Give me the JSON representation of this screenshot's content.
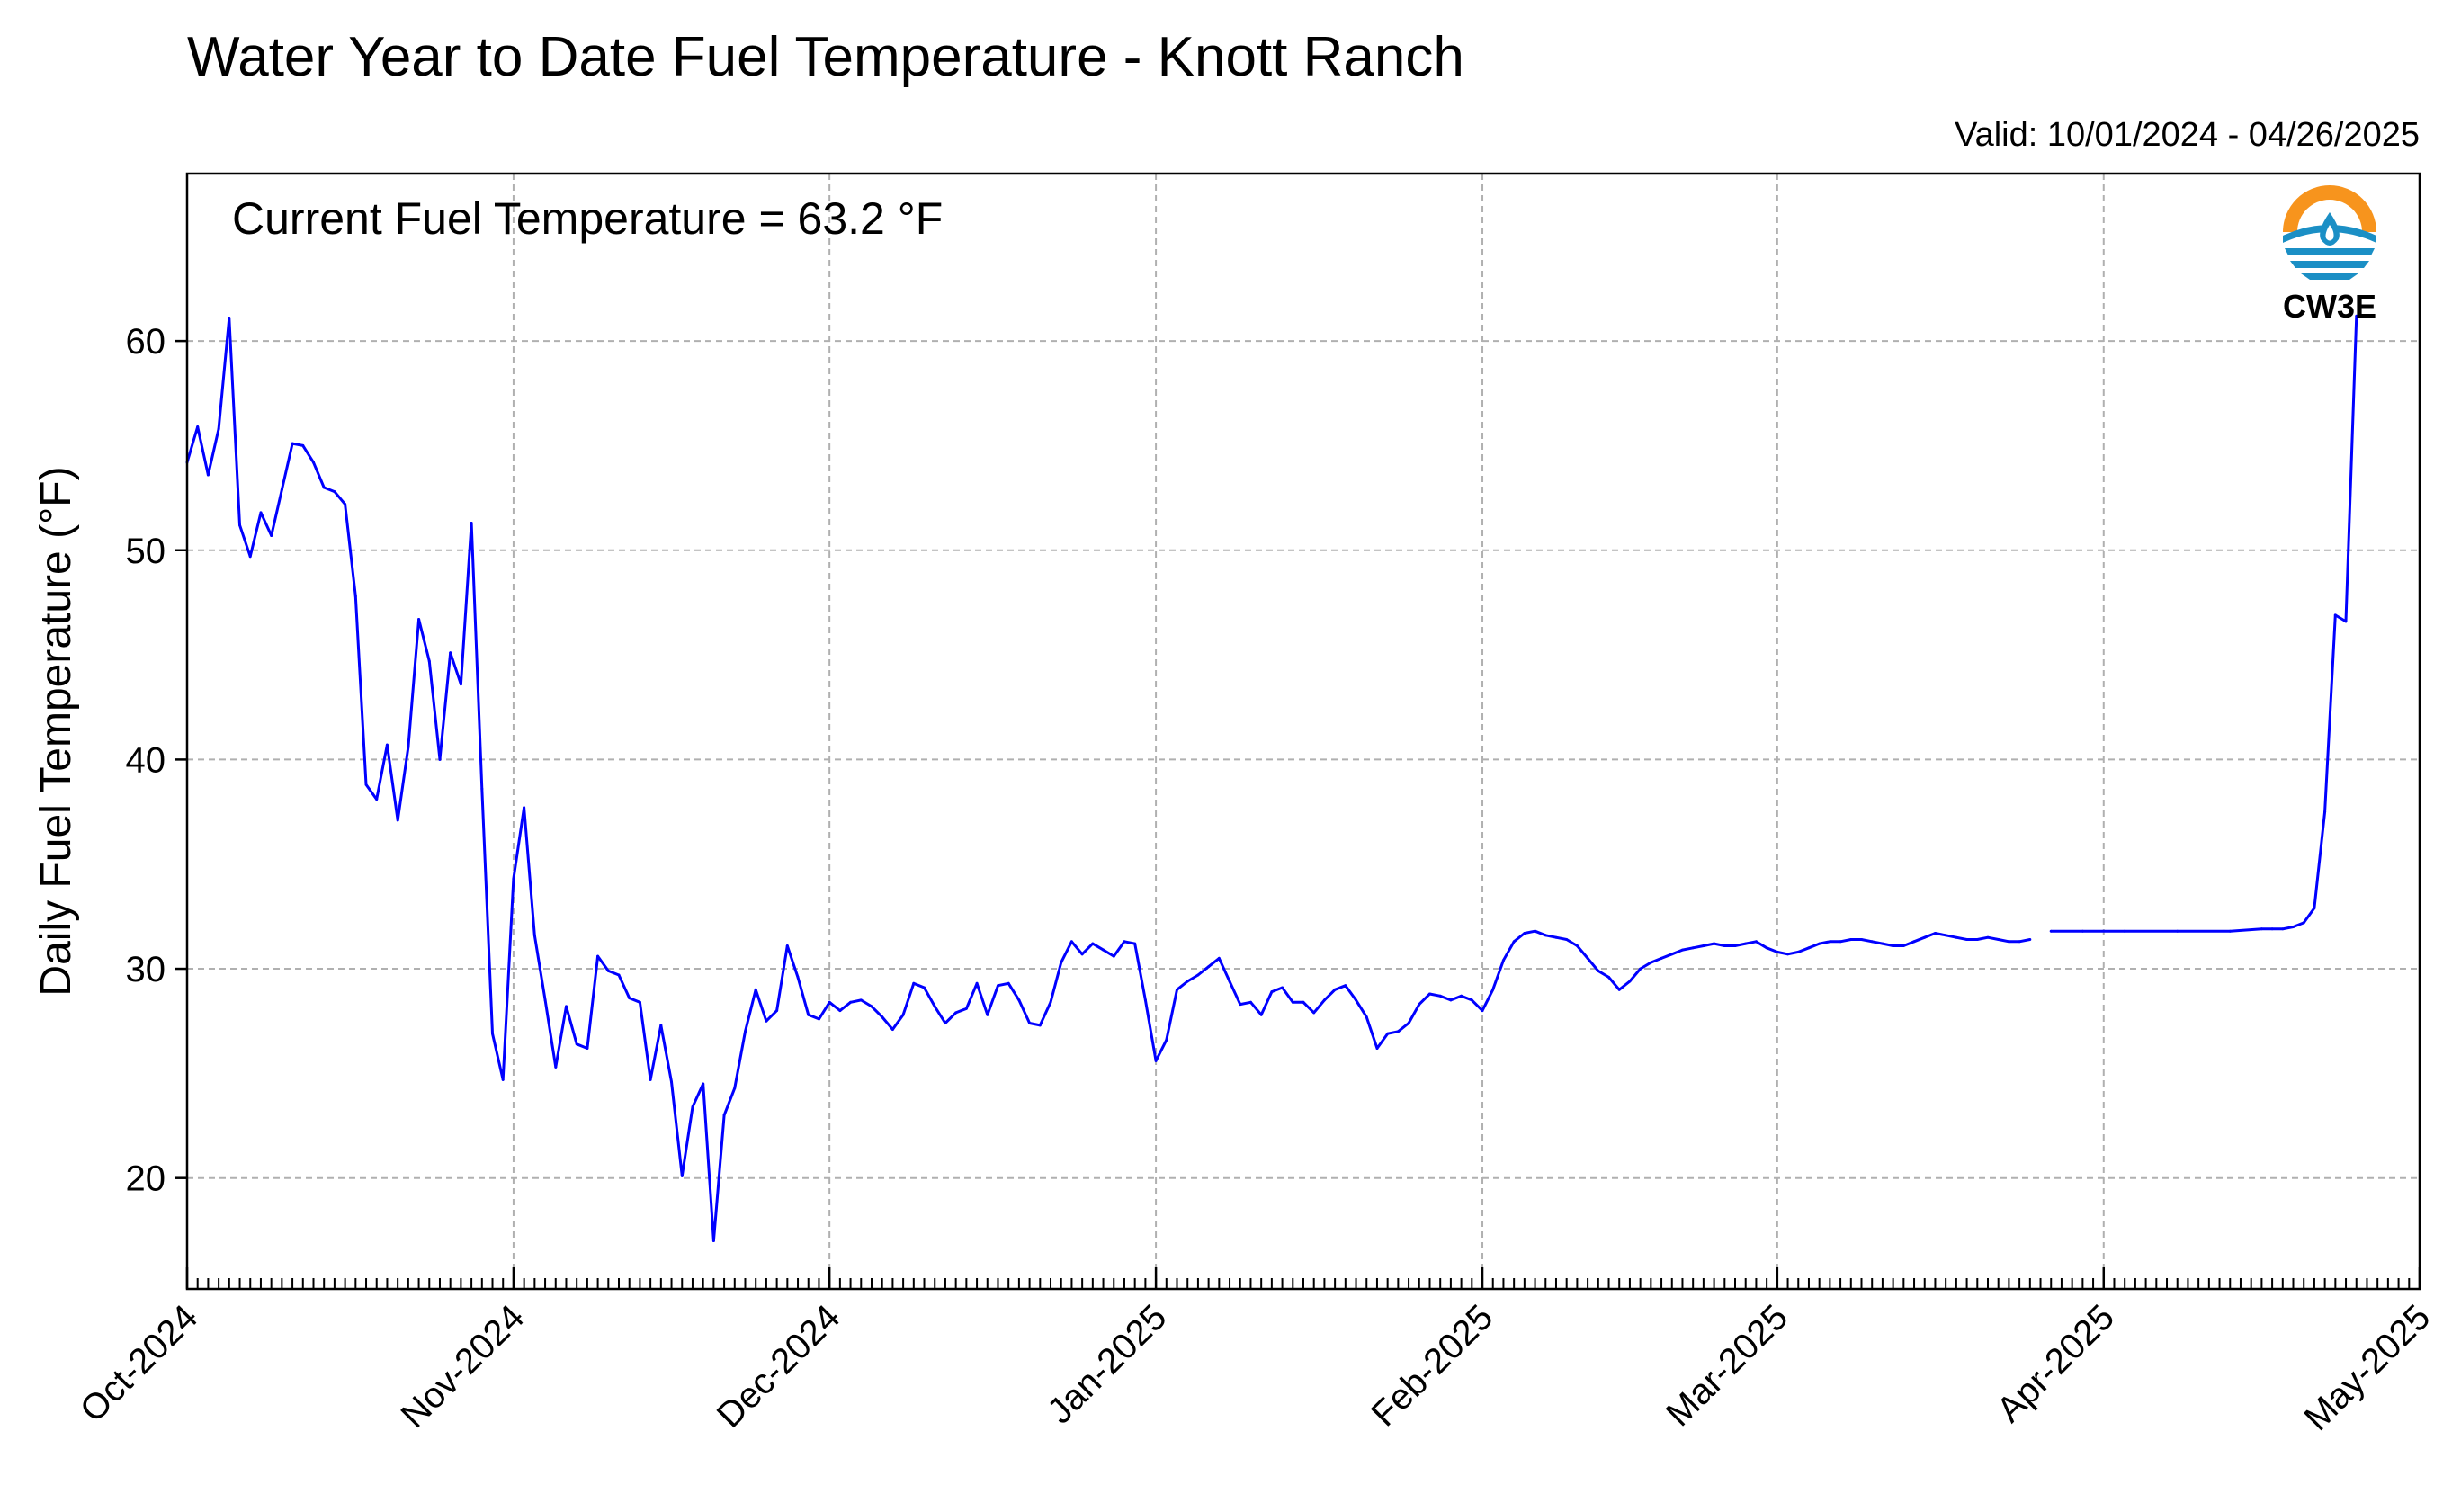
{
  "title": "Water Year to Date Fuel Temperature - Knott Ranch",
  "valid_text": "Valid: 10/01/2024 - 04/26/2025",
  "annotation": "Current Fuel Temperature = 63.2 °F",
  "logo": {
    "text": "CW3E",
    "icon": "cw3e-logo-icon",
    "colors": {
      "sun": "#f7941d",
      "water": "#1b8fc5"
    }
  },
  "colors": {
    "line": "#0000ff",
    "grid": "#b0b0b0",
    "axis": "#000000"
  },
  "chart_data": {
    "type": "line",
    "title": "Water Year to Date Fuel Temperature - Knott Ranch",
    "xlabel": "",
    "ylabel": "Daily Fuel Temperature (°F)",
    "xlim": [
      "2024-10-01",
      "2025-05-01"
    ],
    "ylim": [
      14.7,
      68
    ],
    "grid": true,
    "x_tick_labels": [
      "Oct-2024",
      "Nov-2024",
      "Dec-2024",
      "Jan-2025",
      "Feb-2025",
      "Mar-2025",
      "Apr-2025",
      "May-2025"
    ],
    "x_tick_dates": [
      "2024-10-01",
      "2024-11-01",
      "2024-12-01",
      "2025-01-01",
      "2025-02-01",
      "2025-03-01",
      "2025-04-01",
      "2025-05-01"
    ],
    "y_ticks": [
      20,
      30,
      40,
      50,
      60
    ],
    "series": [
      {
        "segments": [
          [
            [
              "2024-10-01",
              54.2
            ],
            [
              "2024-10-02",
              55.9
            ],
            [
              "2024-10-03",
              53.6
            ],
            [
              "2024-10-04",
              55.8
            ],
            [
              "2024-10-05",
              61.1
            ],
            [
              "2024-10-06",
              51.2
            ],
            [
              "2024-10-07",
              49.7
            ],
            [
              "2024-10-08",
              51.8
            ],
            [
              "2024-10-09",
              50.7
            ],
            [
              "2024-10-10",
              52.9
            ],
            [
              "2024-10-11",
              55.1
            ],
            [
              "2024-10-12",
              55.0
            ],
            [
              "2024-10-13",
              54.2
            ],
            [
              "2024-10-14",
              53.0
            ],
            [
              "2024-10-15",
              52.8
            ],
            [
              "2024-10-16",
              52.2
            ],
            [
              "2024-10-17",
              47.8
            ],
            [
              "2024-10-18",
              38.8
            ],
            [
              "2024-10-19",
              38.1
            ],
            [
              "2024-10-20",
              40.7
            ],
            [
              "2024-10-21",
              37.1
            ],
            [
              "2024-10-22",
              40.6
            ],
            [
              "2024-10-23",
              46.7
            ],
            [
              "2024-10-24",
              44.7
            ],
            [
              "2024-10-25",
              40.0
            ],
            [
              "2024-10-26",
              45.1
            ],
            [
              "2024-10-27",
              43.6
            ],
            [
              "2024-10-28",
              51.3
            ],
            [
              "2024-10-29",
              38.6
            ],
            [
              "2024-10-30",
              26.9
            ],
            [
              "2024-10-31",
              24.7
            ],
            [
              "2024-11-01",
              34.3
            ],
            [
              "2024-11-02",
              37.7
            ],
            [
              "2024-11-03",
              31.6
            ],
            [
              "2024-11-04",
              28.5
            ],
            [
              "2024-11-05",
              25.3
            ],
            [
              "2024-11-06",
              28.2
            ],
            [
              "2024-11-07",
              26.4
            ],
            [
              "2024-11-08",
              26.2
            ],
            [
              "2024-11-09",
              30.6
            ],
            [
              "2024-11-10",
              29.9
            ],
            [
              "2024-11-11",
              29.7
            ],
            [
              "2024-11-12",
              28.6
            ],
            [
              "2024-11-13",
              28.4
            ],
            [
              "2024-11-14",
              24.7
            ],
            [
              "2024-11-15",
              27.3
            ],
            [
              "2024-11-16",
              24.6
            ],
            [
              "2024-11-17",
              20.1
            ],
            [
              "2024-11-18",
              23.4
            ],
            [
              "2024-11-19",
              24.5
            ],
            [
              "2024-11-20",
              17.0
            ],
            [
              "2024-11-21",
              23.0
            ],
            [
              "2024-11-22",
              24.3
            ],
            [
              "2024-11-23",
              27.0
            ],
            [
              "2024-11-24",
              29.0
            ],
            [
              "2024-11-25",
              27.5
            ],
            [
              "2024-11-26",
              28.0
            ],
            [
              "2024-11-27",
              31.1
            ],
            [
              "2024-11-28",
              29.6
            ],
            [
              "2024-11-29",
              27.8
            ],
            [
              "2024-11-30",
              27.6
            ],
            [
              "2024-12-01",
              28.4
            ],
            [
              "2024-12-02",
              28.0
            ],
            [
              "2024-12-03",
              28.4
            ],
            [
              "2024-12-04",
              28.5
            ],
            [
              "2024-12-05",
              28.2
            ],
            [
              "2024-12-06",
              27.7
            ],
            [
              "2024-12-07",
              27.1
            ],
            [
              "2024-12-08",
              27.8
            ],
            [
              "2024-12-09",
              29.3
            ],
            [
              "2024-12-10",
              29.1
            ],
            [
              "2024-12-11",
              28.2
            ],
            [
              "2024-12-12",
              27.4
            ],
            [
              "2024-12-13",
              27.9
            ],
            [
              "2024-12-14",
              28.1
            ],
            [
              "2024-12-15",
              29.3
            ],
            [
              "2024-12-16",
              27.8
            ],
            [
              "2024-12-17",
              29.2
            ],
            [
              "2024-12-18",
              29.3
            ],
            [
              "2024-12-19",
              28.5
            ],
            [
              "2024-12-20",
              27.4
            ],
            [
              "2024-12-21",
              27.3
            ],
            [
              "2024-12-22",
              28.4
            ],
            [
              "2024-12-23",
              30.3
            ],
            [
              "2024-12-24",
              31.3
            ],
            [
              "2024-12-25",
              30.7
            ],
            [
              "2024-12-26",
              31.2
            ],
            [
              "2024-12-27",
              30.9
            ],
            [
              "2024-12-28",
              30.6
            ],
            [
              "2024-12-29",
              31.3
            ],
            [
              "2024-12-30",
              31.2
            ],
            [
              "2024-12-31",
              28.5
            ],
            [
              "2025-01-01",
              25.6
            ],
            [
              "2025-01-02",
              26.6
            ],
            [
              "2025-01-03",
              29.0
            ],
            [
              "2025-01-04",
              29.4
            ],
            [
              "2025-01-05",
              29.7
            ],
            [
              "2025-01-06",
              30.1
            ],
            [
              "2025-01-07",
              30.5
            ],
            [
              "2025-01-08",
              29.4
            ],
            [
              "2025-01-09",
              28.3
            ],
            [
              "2025-01-10",
              28.4
            ],
            [
              "2025-01-11",
              27.8
            ],
            [
              "2025-01-12",
              28.9
            ],
            [
              "2025-01-13",
              29.1
            ],
            [
              "2025-01-14",
              28.4
            ],
            [
              "2025-01-15",
              28.4
            ],
            [
              "2025-01-16",
              27.9
            ],
            [
              "2025-01-17",
              28.5
            ],
            [
              "2025-01-18",
              29.0
            ],
            [
              "2025-01-19",
              29.2
            ],
            [
              "2025-01-20",
              28.5
            ],
            [
              "2025-01-21",
              27.7
            ],
            [
              "2025-01-22",
              26.2
            ],
            [
              "2025-01-23",
              26.9
            ],
            [
              "2025-01-24",
              27.0
            ],
            [
              "2025-01-25",
              27.4
            ],
            [
              "2025-01-26",
              28.3
            ],
            [
              "2025-01-27",
              28.8
            ],
            [
              "2025-01-28",
              28.7
            ],
            [
              "2025-01-29",
              28.5
            ],
            [
              "2025-01-30",
              28.7
            ],
            [
              "2025-01-31",
              28.5
            ],
            [
              "2025-02-01",
              28.0
            ],
            [
              "2025-02-02",
              29.0
            ],
            [
              "2025-02-03",
              30.4
            ],
            [
              "2025-02-04",
              31.3
            ],
            [
              "2025-02-05",
              31.7
            ],
            [
              "2025-02-06",
              31.8
            ],
            [
              "2025-02-07",
              31.6
            ],
            [
              "2025-02-08",
              31.5
            ],
            [
              "2025-02-09",
              31.4
            ],
            [
              "2025-02-10",
              31.1
            ],
            [
              "2025-02-11",
              30.5
            ],
            [
              "2025-02-12",
              29.9
            ],
            [
              "2025-02-13",
              29.6
            ],
            [
              "2025-02-14",
              29.0
            ],
            [
              "2025-02-15",
              29.4
            ],
            [
              "2025-02-16",
              30.0
            ],
            [
              "2025-02-17",
              30.3
            ],
            [
              "2025-02-18",
              30.5
            ],
            [
              "2025-02-19",
              30.7
            ],
            [
              "2025-02-20",
              30.9
            ],
            [
              "2025-02-21",
              31.0
            ],
            [
              "2025-02-22",
              31.1
            ],
            [
              "2025-02-23",
              31.2
            ],
            [
              "2025-02-24",
              31.1
            ],
            [
              "2025-02-25",
              31.1
            ],
            [
              "2025-02-26",
              31.2
            ],
            [
              "2025-02-27",
              31.3
            ],
            [
              "2025-02-28",
              31.0
            ],
            [
              "2025-03-01",
              30.8
            ],
            [
              "2025-03-02",
              30.7
            ],
            [
              "2025-03-03",
              30.8
            ],
            [
              "2025-03-04",
              31.0
            ],
            [
              "2025-03-05",
              31.2
            ],
            [
              "2025-03-06",
              31.3
            ],
            [
              "2025-03-07",
              31.3
            ],
            [
              "2025-03-08",
              31.4
            ],
            [
              "2025-03-09",
              31.4
            ],
            [
              "2025-03-10",
              31.3
            ],
            [
              "2025-03-11",
              31.2
            ],
            [
              "2025-03-12",
              31.1
            ],
            [
              "2025-03-13",
              31.1
            ],
            [
              "2025-03-14",
              31.3
            ],
            [
              "2025-03-15",
              31.5
            ],
            [
              "2025-03-16",
              31.7
            ],
            [
              "2025-03-17",
              31.6
            ],
            [
              "2025-03-18",
              31.5
            ],
            [
              "2025-03-19",
              31.4
            ],
            [
              "2025-03-20",
              31.4
            ],
            [
              "2025-03-21",
              31.5
            ],
            [
              "2025-03-22",
              31.4
            ],
            [
              "2025-03-23",
              31.3
            ],
            [
              "2025-03-24",
              31.3
            ],
            [
              "2025-03-25",
              31.4
            ]
          ],
          [
            [
              "2025-03-27",
              31.8
            ],
            [
              "2025-03-30",
              31.8
            ],
            [
              "2025-04-03",
              31.8
            ],
            [
              "2025-04-08",
              31.8
            ],
            [
              "2025-04-13",
              31.8
            ],
            [
              "2025-04-16",
              31.9
            ],
            [
              "2025-04-17",
              31.9
            ],
            [
              "2025-04-18",
              31.9
            ],
            [
              "2025-04-19",
              32.0
            ],
            [
              "2025-04-20",
              32.2
            ],
            [
              "2025-04-21",
              32.9
            ],
            [
              "2025-04-22",
              37.5
            ],
            [
              "2025-04-23",
              46.9
            ],
            [
              "2025-04-24",
              46.6
            ],
            [
              "2025-04-25",
              61.2
            ]
          ]
        ]
      }
    ]
  }
}
